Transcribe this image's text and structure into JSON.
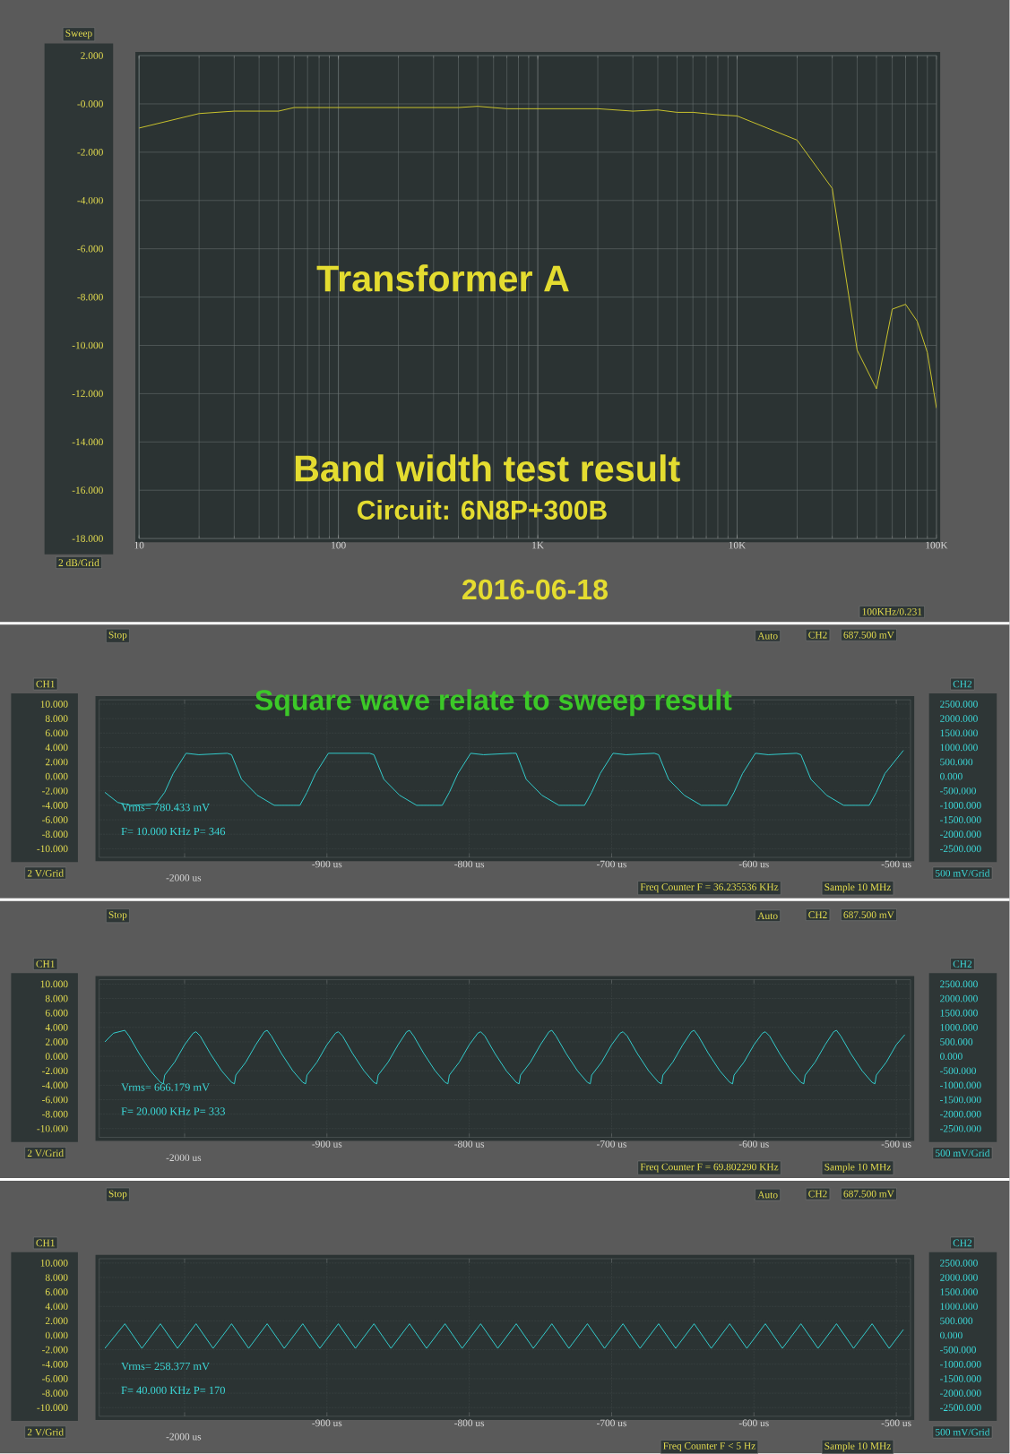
{
  "chart_data": [
    {
      "type": "line",
      "title": "Band width test result",
      "subtitle": "Circuit: 6N8P+300B",
      "ylabel": "Sweep",
      "annotations": [
        "Transformer A",
        "2016-06-18",
        "2 dB/Grid",
        "100KHz/0.231"
      ],
      "x": [
        10,
        20,
        30,
        50,
        60,
        100,
        200,
        400,
        500,
        700,
        1000,
        2000,
        3000,
        4000,
        5000,
        6000,
        8000,
        10000,
        20000,
        30000,
        40000,
        50000,
        60000,
        70000,
        80000,
        90000,
        100000
      ],
      "series": [
        {
          "color": "#d4cc2c",
          "values": [
            -1.0,
            -0.4,
            -0.3,
            -0.3,
            -0.15,
            -0.15,
            -0.15,
            -0.15,
            -0.1,
            -0.2,
            -0.2,
            -0.2,
            -0.3,
            -0.25,
            -0.35,
            -0.35,
            -0.45,
            -0.5,
            -1.5,
            -3.5,
            -10.2,
            -11.8,
            -8.5,
            -8.3,
            -9.0,
            -10.3,
            -12.6
          ]
        }
      ],
      "log": "x",
      "xlim": [
        10,
        100000
      ],
      "ylim": [
        -18,
        2
      ],
      "xticks": [
        10,
        100,
        {
          "value": 1000,
          "label": "1K"
        },
        {
          "value": 10000,
          "label": "10K"
        },
        {
          "value": 100000,
          "label": "100K"
        }
      ],
      "yticks": [
        {
          "value": -18,
          "label": "-18.000"
        },
        {
          "value": -16,
          "label": "-16.000"
        },
        {
          "value": -14,
          "label": "-14.000"
        },
        {
          "value": -12,
          "label": "-12.000"
        },
        {
          "value": -10,
          "label": "-10.000"
        },
        {
          "value": -8,
          "label": "-8.000"
        },
        {
          "value": -6,
          "label": "-6.000"
        },
        {
          "value": -4,
          "label": "-4.000"
        },
        {
          "value": -2,
          "label": "-2.000"
        },
        {
          "value": 0,
          "label": "-0.000"
        },
        {
          "value": 2,
          "label": "2.000"
        }
      ],
      "grid": true
    },
    {
      "type": "line",
      "title": "Square wave relate to sweep result",
      "ylabel": "CH1",
      "y2label": "CH2",
      "annotations": [
        "Stop",
        "Auto",
        "CH2",
        "687.500 mV",
        "2 V/Grid",
        "500 mV/Grid",
        "Vrms= 780.433 mV",
        "F= 10.000 KHz P= 346",
        "Freq Counter F = 36.235536 KHz",
        "Sample 10 MHz",
        "-2000 us"
      ],
      "x": [
        -1056,
        -1047,
        -1038,
        -1020,
        -1014,
        -1008,
        -999,
        -990,
        -970,
        -967,
        -960,
        -949,
        -937,
        -919,
        -914,
        -908,
        -899,
        -890,
        -870,
        -867,
        -860,
        -849,
        -837,
        -819,
        -814,
        -808,
        -799,
        -790,
        -770,
        -767,
        -760,
        -749,
        -737,
        -719,
        -714,
        -708,
        -699,
        -690,
        -670,
        -667,
        -660,
        -649,
        -637,
        -619,
        -614,
        -608,
        -599,
        -590,
        -570,
        -567,
        -560,
        -549,
        -537,
        -519,
        -514,
        -508,
        -495
      ],
      "series": [
        {
          "color": "#33d6d6",
          "axis": "y2",
          "values": [
            -550,
            -900,
            -1000,
            -950,
            -550,
            100,
            800,
            750,
            800,
            750,
            -100,
            -650,
            -1000,
            -1000,
            -550,
            100,
            800,
            800,
            800,
            750,
            -100,
            -650,
            -1000,
            -1000,
            -550,
            100,
            800,
            750,
            800,
            800,
            -100,
            -650,
            -1000,
            -1000,
            -550,
            100,
            800,
            750,
            800,
            750,
            -100,
            -650,
            -1000,
            -1000,
            -550,
            100,
            800,
            750,
            800,
            750,
            -100,
            -650,
            -1000,
            -1000,
            -550,
            100,
            900
          ]
        }
      ],
      "xlim": [
        -1060,
        -490
      ],
      "ylim": [
        -11.2,
        10.6
      ],
      "y2lim": [
        -2800,
        2650
      ],
      "xticks": [
        {
          "value": -1000,
          "label": null
        },
        {
          "value": -900,
          "label": "-900 us"
        },
        {
          "value": -800,
          "label": "-800 us"
        },
        {
          "value": -700,
          "label": "-700 us"
        },
        {
          "value": -600,
          "label": "-600 us"
        },
        {
          "value": -500,
          "label": "-500 us"
        }
      ],
      "yticks": [
        {
          "value": -10,
          "label": "-10.000"
        },
        {
          "value": -8,
          "label": "-8.000"
        },
        {
          "value": -6,
          "label": "-6.000"
        },
        {
          "value": -4,
          "label": "-4.000"
        },
        {
          "value": -2,
          "label": "-2.000"
        },
        {
          "value": 0,
          "label": "0.000"
        },
        {
          "value": 2,
          "label": "2.000"
        },
        {
          "value": 4,
          "label": "4.000"
        },
        {
          "value": 6,
          "label": "6.000"
        },
        {
          "value": 8,
          "label": "8.000"
        },
        {
          "value": 10,
          "label": "10.000"
        }
      ],
      "y2ticks": [
        {
          "value": -2500,
          "label": "-2500.000"
        },
        {
          "value": -2000,
          "label": "-2000.000"
        },
        {
          "value": -1500,
          "label": "-1500.000"
        },
        {
          "value": -1000,
          "label": "-1000.000"
        },
        {
          "value": -500,
          "label": "-500.000"
        },
        {
          "value": 0,
          "label": "0.000"
        },
        {
          "value": 500,
          "label": "500.000"
        },
        {
          "value": 1000,
          "label": "1000.000"
        },
        {
          "value": 1500,
          "label": "1500.000"
        },
        {
          "value": 2000,
          "label": "2000.000"
        },
        {
          "value": 2500,
          "label": "2500.000"
        }
      ],
      "grid": true
    },
    {
      "type": "line",
      "ylabel": "CH1",
      "y2label": "CH2",
      "annotations": [
        "Stop",
        "Auto",
        "CH2",
        "687.500 mV",
        "2 V/Grid",
        "500 mV/Grid",
        "Vrms= 666.179 mV",
        "F= 20.000 KHz P= 333",
        "Freq Counter F = 69.802290 KHz",
        "Sample 10 MHz",
        "-2000 us"
      ],
      "x": [
        -1056,
        -1050,
        -1042,
        -1039,
        -1032,
        -1024,
        -1017,
        -1015,
        -1014,
        -1007,
        -1000,
        -994,
        -992,
        -989,
        -982,
        -974,
        -967,
        -965,
        -964,
        -957,
        -950,
        -944,
        -942,
        -939,
        -932,
        -924,
        -917,
        -915,
        -914,
        -907,
        -900,
        -894,
        -892,
        -889,
        -882,
        -874,
        -867,
        -865,
        -864,
        -857,
        -850,
        -844,
        -842,
        -839,
        -832,
        -824,
        -817,
        -815,
        -814,
        -807,
        -800,
        -794,
        -792,
        -789,
        -782,
        -774,
        -767,
        -765,
        -764,
        -757,
        -750,
        -744,
        -742,
        -739,
        -732,
        -724,
        -717,
        -715,
        -714,
        -707,
        -700,
        -694,
        -692,
        -689,
        -682,
        -674,
        -667,
        -665,
        -664,
        -657,
        -650,
        -644,
        -642,
        -639,
        -632,
        -624,
        -617,
        -615,
        -614,
        -607,
        -600,
        -594,
        -592,
        -589,
        -582,
        -574,
        -567,
        -565,
        -564,
        -557,
        -550,
        -544,
        -542,
        -539,
        -532,
        -524,
        -517,
        -515,
        -514,
        -507,
        -500,
        -494
      ],
      "series": [
        {
          "color": "#33d6d6",
          "axis": "y2",
          "values": [
            500,
            800,
            900,
            700,
            100,
            -500,
            -900,
            -950,
            -650,
            -200,
            400,
            800,
            850,
            700,
            100,
            -500,
            -900,
            -950,
            -650,
            -200,
            400,
            850,
            900,
            700,
            100,
            -500,
            -900,
            -950,
            -650,
            -200,
            400,
            800,
            850,
            700,
            100,
            -500,
            -900,
            -950,
            -650,
            -200,
            400,
            850,
            900,
            700,
            100,
            -500,
            -900,
            -950,
            -650,
            -200,
            400,
            800,
            850,
            700,
            100,
            -500,
            -900,
            -950,
            -650,
            -200,
            400,
            850,
            900,
            700,
            100,
            -500,
            -900,
            -950,
            -650,
            -200,
            400,
            800,
            850,
            700,
            100,
            -500,
            -900,
            -950,
            -650,
            -200,
            400,
            850,
            900,
            700,
            100,
            -500,
            -900,
            -950,
            -650,
            -200,
            400,
            800,
            850,
            700,
            100,
            -500,
            -900,
            -950,
            -650,
            -200,
            400,
            850,
            900,
            700,
            100,
            -500,
            -900,
            -950,
            -650,
            -200,
            400,
            750
          ]
        }
      ],
      "xlim": [
        -1060,
        -490
      ],
      "ylim": [
        -11.2,
        10.6
      ],
      "y2lim": [
        -2800,
        2650
      ],
      "xticks": [
        {
          "value": -1000,
          "label": null
        },
        {
          "value": -900,
          "label": "-900 us"
        },
        {
          "value": -800,
          "label": "-800 us"
        },
        {
          "value": -700,
          "label": "-700 us"
        },
        {
          "value": -600,
          "label": "-600 us"
        },
        {
          "value": -500,
          "label": "-500 us"
        }
      ],
      "yticks": [
        {
          "value": -10,
          "label": "-10.000"
        },
        {
          "value": -8,
          "label": "-8.000"
        },
        {
          "value": -6,
          "label": "-6.000"
        },
        {
          "value": -4,
          "label": "-4.000"
        },
        {
          "value": -2,
          "label": "-2.000"
        },
        {
          "value": 0,
          "label": "0.000"
        },
        {
          "value": 2,
          "label": "2.000"
        },
        {
          "value": 4,
          "label": "4.000"
        },
        {
          "value": 6,
          "label": "6.000"
        },
        {
          "value": 8,
          "label": "8.000"
        },
        {
          "value": 10,
          "label": "10.000"
        }
      ],
      "y2ticks": [
        {
          "value": -2500,
          "label": "-2500.000"
        },
        {
          "value": -2000,
          "label": "-2000.000"
        },
        {
          "value": -1500,
          "label": "-1500.000"
        },
        {
          "value": -1000,
          "label": "-1000.000"
        },
        {
          "value": -500,
          "label": "-500.000"
        },
        {
          "value": 0,
          "label": "0.000"
        },
        {
          "value": 500,
          "label": "500.000"
        },
        {
          "value": 1000,
          "label": "1000.000"
        },
        {
          "value": 1500,
          "label": "1500.000"
        },
        {
          "value": 2000,
          "label": "2000.000"
        },
        {
          "value": 2500,
          "label": "2500.000"
        }
      ],
      "grid": true
    },
    {
      "type": "line",
      "ylabel": "CH1",
      "y2label": "CH2",
      "annotations": [
        "Stop",
        "Auto",
        "CH2",
        "687.500 mV",
        "2 V/Grid",
        "500 mV/Grid",
        "Vrms= 258.377 mV",
        "F= 40.000 KHz P= 170",
        "Freq Counter F < 5 Hz",
        "Sample 10 MHz",
        "-2000 us"
      ],
      "x": [
        -1056,
        -1042,
        -1030,
        -1017,
        -1005,
        -992,
        -980,
        -967,
        -955,
        -942,
        -930,
        -917,
        -905,
        -892,
        -880,
        -867,
        -855,
        -842,
        -830,
        -817,
        -805,
        -792,
        -780,
        -767,
        -755,
        -742,
        -730,
        -717,
        -705,
        -692,
        -680,
        -667,
        -655,
        -642,
        -630,
        -617,
        -605,
        -592,
        -580,
        -567,
        -555,
        -542,
        -530,
        -517,
        -505,
        -495
      ],
      "series": [
        {
          "color": "#33d6d6",
          "axis": "y2",
          "values": [
            -450,
            400,
            -450,
            400,
            -450,
            400,
            -450,
            400,
            -450,
            400,
            -450,
            400,
            -450,
            400,
            -450,
            400,
            -450,
            400,
            -450,
            400,
            -450,
            400,
            -450,
            400,
            -450,
            400,
            -450,
            400,
            -450,
            400,
            -450,
            400,
            -450,
            400,
            -450,
            400,
            -450,
            400,
            -450,
            400,
            -450,
            400,
            -450,
            400,
            -450,
            200
          ]
        }
      ],
      "xlim": [
        -1060,
        -490
      ],
      "ylim": [
        -11.2,
        10.6
      ],
      "y2lim": [
        -2800,
        2650
      ],
      "xticks": [
        {
          "value": -1000,
          "label": null
        },
        {
          "value": -900,
          "label": "-900 us"
        },
        {
          "value": -800,
          "label": "-800 us"
        },
        {
          "value": -700,
          "label": "-700 us"
        },
        {
          "value": -600,
          "label": "-600 us"
        },
        {
          "value": -500,
          "label": "-500 us"
        }
      ],
      "yticks": [
        {
          "value": -10,
          "label": "-10.000"
        },
        {
          "value": -8,
          "label": "-8.000"
        },
        {
          "value": -6,
          "label": "-6.000"
        },
        {
          "value": -4,
          "label": "-4.000"
        },
        {
          "value": -2,
          "label": "-2.000"
        },
        {
          "value": 0,
          "label": "0.000"
        },
        {
          "value": 2,
          "label": "2.000"
        },
        {
          "value": 4,
          "label": "4.000"
        },
        {
          "value": 6,
          "label": "6.000"
        },
        {
          "value": 8,
          "label": "8.000"
        },
        {
          "value": 10,
          "label": "10.000"
        }
      ],
      "y2ticks": [
        {
          "value": -2500,
          "label": "-2500.000"
        },
        {
          "value": -2000,
          "label": "-2000.000"
        },
        {
          "value": -1500,
          "label": "-1500.000"
        },
        {
          "value": -1000,
          "label": "-1000.000"
        },
        {
          "value": -500,
          "label": "-500.000"
        },
        {
          "value": 0,
          "label": "0.000"
        },
        {
          "value": 500,
          "label": "500.000"
        },
        {
          "value": 1000,
          "label": "1000.000"
        },
        {
          "value": 1500,
          "label": "1500.000"
        },
        {
          "value": 2000,
          "label": "2000.000"
        },
        {
          "value": 2500,
          "label": "2500.000"
        }
      ],
      "grid": true
    }
  ]
}
